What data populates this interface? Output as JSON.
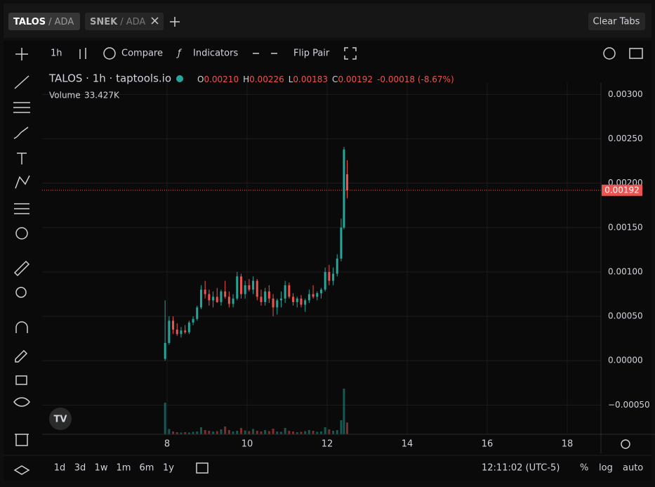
{
  "tabs": [
    {
      "base": "TALOS",
      "quote": "/ ADA"
    },
    {
      "base": "SNEK",
      "quote": "/ ADA"
    }
  ],
  "clear_tabs": "Clear Tabs",
  "toolbar": {
    "interval": "1h",
    "compare": "Compare",
    "indicators": "Indicators",
    "flip_pair": "Flip Pair"
  },
  "legend": {
    "symbol": "TALOS · 1h · taptools.io",
    "o_label": "O",
    "open": "0.00210",
    "h_label": "H",
    "high": "0.00226",
    "l_label": "L",
    "low": "0.00183",
    "c_label": "C",
    "close": "0.00192",
    "change": "-0.00018 (-8.67%)",
    "volume_label": "Volume",
    "volume": "33.427K"
  },
  "chart_data": {
    "type": "candlestick",
    "x": [
      7.95,
      8.05,
      8.15,
      8.25,
      8.35,
      8.45,
      8.55,
      8.65,
      8.75,
      8.85,
      8.95,
      9.05,
      9.15,
      9.25,
      9.35,
      9.45,
      9.55,
      9.65,
      9.75,
      9.85,
      9.95,
      10.05,
      10.15,
      10.25,
      10.35,
      10.45,
      10.55,
      10.65,
      10.75,
      10.85,
      10.95,
      11.05,
      11.15,
      11.25,
      11.35,
      11.45,
      11.55,
      11.65,
      11.75,
      11.85,
      11.95,
      12.05,
      12.15,
      12.25,
      12.35,
      12.42,
      12.5
    ],
    "open": [
      2e-05,
      0.0002,
      0.00045,
      0.00035,
      0.0003,
      0.00034,
      0.00032,
      0.00043,
      0.00047,
      0.0006,
      0.0008,
      0.00075,
      0.00068,
      0.00072,
      0.00066,
      0.00078,
      0.00072,
      0.00064,
      0.0007,
      0.00095,
      0.00075,
      0.00085,
      0.0008,
      0.0009,
      0.00072,
      0.00066,
      0.00078,
      0.0007,
      0.0006,
      0.00068,
      0.0007,
      0.00085,
      0.00072,
      0.00066,
      0.0007,
      0.00063,
      0.00068,
      0.00075,
      0.00072,
      0.00076,
      0.0008,
      0.001,
      0.0009,
      0.00098,
      0.00115,
      0.0015,
      0.0021
    ],
    "high": [
      0.00068,
      0.0005,
      0.0005,
      0.00042,
      0.00038,
      0.0004,
      0.00045,
      0.0005,
      0.00062,
      0.00085,
      0.0009,
      0.0008,
      0.00078,
      0.00082,
      0.0008,
      0.0009,
      0.00078,
      0.00075,
      0.001,
      0.00098,
      0.0009,
      0.00092,
      0.00095,
      0.00092,
      0.0008,
      0.00082,
      0.00085,
      0.00075,
      0.0007,
      0.00078,
      0.0009,
      0.00088,
      0.00076,
      0.00072,
      0.00074,
      0.0007,
      0.0008,
      0.00085,
      0.00078,
      0.00082,
      0.00105,
      0.00108,
      0.00105,
      0.0012,
      0.0016,
      0.00241,
      0.00226
    ],
    "low": [
      0,
      0.00018,
      0.0003,
      0.00028,
      0.00026,
      0.0003,
      0.0003,
      0.0004,
      0.00045,
      0.00058,
      0.0007,
      0.00062,
      0.0006,
      0.00065,
      0.00062,
      0.0007,
      0.0006,
      0.0006,
      0.00068,
      0.0007,
      0.0007,
      0.00078,
      0.00075,
      0.00068,
      0.00062,
      0.00062,
      0.00065,
      0.0005,
      0.00052,
      0.0006,
      0.00065,
      0.0007,
      0.00062,
      0.0006,
      0.0006,
      0.00055,
      0.00065,
      0.0007,
      0.00068,
      0.0007,
      0.00078,
      0.00085,
      0.00085,
      0.00095,
      0.00112,
      0.00148,
      0.00183
    ],
    "close": [
      0.0002,
      0.00045,
      0.00035,
      0.0003,
      0.00034,
      0.00032,
      0.00043,
      0.00047,
      0.0006,
      0.0008,
      0.00075,
      0.00068,
      0.00072,
      0.00066,
      0.00078,
      0.00072,
      0.00064,
      0.0007,
      0.00095,
      0.00075,
      0.00085,
      0.0008,
      0.0009,
      0.00072,
      0.00066,
      0.00078,
      0.0007,
      0.0006,
      0.00068,
      0.0007,
      0.00085,
      0.00072,
      0.00066,
      0.0007,
      0.00063,
      0.00068,
      0.00075,
      0.00072,
      0.00076,
      0.0008,
      0.001,
      0.0009,
      0.00098,
      0.00115,
      0.0015,
      0.00238,
      0.00192
    ],
    "volume": [
      90,
      15,
      8,
      6,
      5,
      6,
      5,
      7,
      8,
      20,
      12,
      10,
      8,
      9,
      14,
      22,
      12,
      8,
      10,
      18,
      11,
      9,
      15,
      10,
      8,
      12,
      9,
      16,
      8,
      7,
      18,
      10,
      8,
      6,
      7,
      9,
      12,
      10,
      7,
      8,
      20,
      14,
      10,
      12,
      40,
      130,
      33.427
    ],
    "up_color": "#26a69a",
    "down_color": "#ef5350",
    "volume_lim": [
      0,
      300
    ],
    "xlim": [
      4.877,
      18.842
    ],
    "xticks": [
      8,
      10,
      12,
      14,
      16,
      18
    ],
    "ylim": [
      -0.00083,
      0.00313
    ],
    "yticks": [
      {
        "value": -0.0005,
        "label": "−0.00050"
      },
      {
        "value": 0,
        "label": "0.00000"
      },
      {
        "value": 0.0005,
        "label": "0.00050"
      },
      {
        "value": 0.001,
        "label": "0.00100"
      },
      {
        "value": 0.0015,
        "label": "0.00150"
      },
      {
        "value": 0.002,
        "label": "0.00200"
      },
      {
        "value": 0.0025,
        "label": "0.00250"
      },
      {
        "value": 0.003,
        "label": "0.00300"
      }
    ],
    "grid": true
  },
  "bottom": {
    "ranges": [
      "1d",
      "3d",
      "1w",
      "1m",
      "6m",
      "1y"
    ],
    "clock": "12:11:02 (UTC-5)",
    "percent": "%",
    "log": "log",
    "auto": "auto"
  }
}
